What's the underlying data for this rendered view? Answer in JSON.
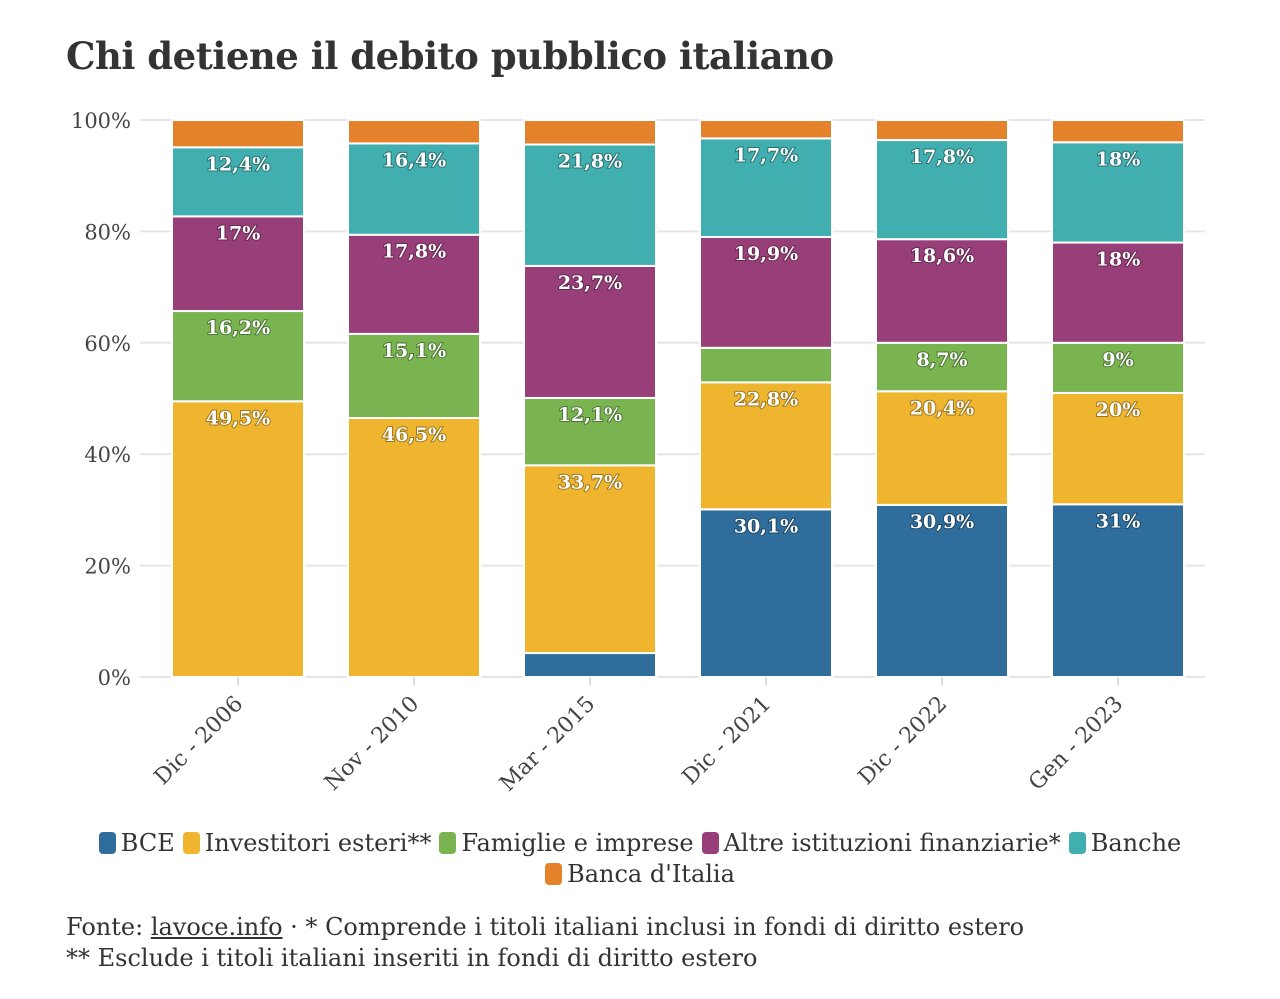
{
  "title": "Chi detiene il debito pubblico italiano",
  "chart_data": {
    "type": "bar",
    "stacked": true,
    "categories": [
      "Dic - 2006",
      "Nov - 2010",
      "Mar - 2015",
      "Dic - 2021",
      "Dic - 2022",
      "Gen - 2023"
    ],
    "ylim": [
      0,
      100
    ],
    "yticks": [
      "0%",
      "20%",
      "40%",
      "60%",
      "80%",
      "100%"
    ],
    "grid": true,
    "legend_position": "bottom",
    "series": [
      {
        "name": "BCE",
        "color": "#2f6e9c",
        "values": [
          0,
          0,
          4.3,
          30.1,
          30.9,
          31
        ],
        "labels": [
          "",
          "",
          "",
          "30,1%",
          "30,9%",
          "31%"
        ]
      },
      {
        "name": "Investitori esteri**",
        "color": "#efb52f",
        "values": [
          49.5,
          46.5,
          33.7,
          22.8,
          20.4,
          20
        ],
        "labels": [
          "49,5%",
          "46,5%",
          "33,7%",
          "22,8%",
          "20,4%",
          "20%"
        ]
      },
      {
        "name": "Famiglie e imprese",
        "color": "#79b451",
        "values": [
          16.2,
          15.1,
          12.1,
          6.2,
          8.7,
          9
        ],
        "labels": [
          "16,2%",
          "15,1%",
          "12,1%",
          "",
          "8,7%",
          "9%"
        ]
      },
      {
        "name": "Altre istituzioni finanziarie*",
        "color": "#983f79",
        "values": [
          17,
          17.8,
          23.7,
          19.9,
          18.6,
          18
        ],
        "labels": [
          "17%",
          "17,8%",
          "23,7%",
          "19,9%",
          "18,6%",
          "18%"
        ]
      },
      {
        "name": "Banche",
        "color": "#41aeaf",
        "values": [
          12.4,
          16.4,
          21.8,
          17.7,
          17.8,
          18
        ],
        "labels": [
          "12,4%",
          "16,4%",
          "21,8%",
          "17,7%",
          "17,8%",
          "18%"
        ]
      },
      {
        "name": "Banca d'Italia",
        "color": "#e3822a",
        "values": [
          4.9,
          4.2,
          4.4,
          3.3,
          3.6,
          4
        ],
        "labels": [
          "",
          "",
          "",
          "",
          "",
          ""
        ]
      }
    ]
  },
  "footer": {
    "source_prefix": "Fonte: ",
    "source_name": "lavoce.info",
    "note1": " · * Comprende i titoli italiani inclusi in fondi di diritto estero",
    "note2": "** Esclude i titoli italiani inseriti in fondi di diritto estero"
  }
}
